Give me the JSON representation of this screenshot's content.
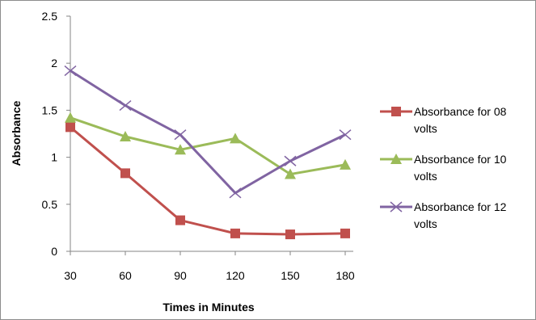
{
  "chart_data": {
    "type": "line",
    "xlabel": "Times in Minutes",
    "ylabel": "Absorbance",
    "ylim": [
      0,
      2.5
    ],
    "y_ticks": [
      "0",
      "0.5",
      "1",
      "1.5",
      "2",
      "2.5"
    ],
    "categories": [
      "30",
      "60",
      "90",
      "120",
      "150",
      "180"
    ],
    "grid": false,
    "legend_position": "right",
    "series": [
      {
        "name_lines": [
          "Absorbance for 08",
          "volts"
        ],
        "values": [
          1.32,
          0.83,
          0.33,
          0.19,
          0.18,
          0.19
        ],
        "color": "#c0504d",
        "marker": "square"
      },
      {
        "name_lines": [
          "Absorbance for 10",
          "volts"
        ],
        "values": [
          1.42,
          1.22,
          1.08,
          1.2,
          0.82,
          0.92
        ],
        "color": "#9bbb59",
        "marker": "triangle"
      },
      {
        "name_lines": [
          "Absorbance for 12",
          "volts"
        ],
        "values": [
          1.92,
          1.55,
          1.24,
          0.62,
          0.96,
          1.24
        ],
        "color": "#8064a2",
        "marker": "x"
      }
    ]
  }
}
